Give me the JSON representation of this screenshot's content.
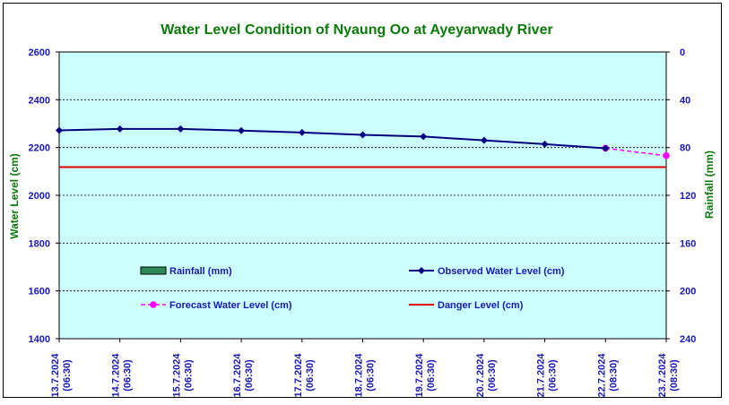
{
  "chart_data": {
    "type": "line",
    "title": "Water Level Condition of Nyaung Oo at Ayeyarwady River",
    "ylabel": "Water Level (cm)",
    "y2label": "Rainfall (mm)",
    "ylim": [
      1400,
      2600
    ],
    "yticks": [
      1400,
      1600,
      1800,
      2000,
      2200,
      2400,
      2600
    ],
    "y2lim": [
      0,
      240
    ],
    "y2ticks": [
      0,
      40,
      80,
      120,
      160,
      200,
      240
    ],
    "y2_reversed": true,
    "categories": [
      [
        "13.7.2024",
        "(06:30)"
      ],
      [
        "14.7.2024",
        "(06:30)"
      ],
      [
        "15.7.2024",
        "(06:30)"
      ],
      [
        "16.7.2024",
        "(06:30)"
      ],
      [
        "17.7.2024",
        "(06:30)"
      ],
      [
        "18.7.2024",
        "(06:30)"
      ],
      [
        "19.7.2024",
        "(06:30)"
      ],
      [
        "20.7.2024",
        "(06:30)"
      ],
      [
        "21.7.2024",
        "(06:30)"
      ],
      [
        "22.7.2024",
        "(08:30)"
      ],
      [
        "23.7.2024",
        "(08:30)"
      ]
    ],
    "series": [
      {
        "name": "Observed Water Level (cm)",
        "style": "solid-diamond",
        "color": "#000080",
        "values": [
          2272,
          2278,
          2278,
          2271,
          2263,
          2253,
          2246,
          2230,
          2214,
          2197,
          null
        ]
      },
      {
        "name": "Forecast Water Level (cm)",
        "style": "dashed-circle",
        "color": "#ff00ff",
        "values": [
          null,
          null,
          null,
          null,
          null,
          null,
          null,
          null,
          null,
          2197,
          2166
        ]
      },
      {
        "name": "Danger Level (cm)",
        "style": "solid-line",
        "color": "#e00000",
        "values": [
          2118,
          2118,
          2118,
          2118,
          2118,
          2118,
          2118,
          2118,
          2118,
          2118,
          2118
        ]
      },
      {
        "name": "Rainfall (mm)",
        "style": "bar",
        "color": "#2e8b57",
        "values": [
          0,
          0,
          0,
          0,
          0,
          0,
          0,
          0,
          0,
          0,
          0
        ]
      }
    ],
    "grid": "horizontal-dashed",
    "plot_background": "#ccffff",
    "legend": "inside-bottom"
  }
}
